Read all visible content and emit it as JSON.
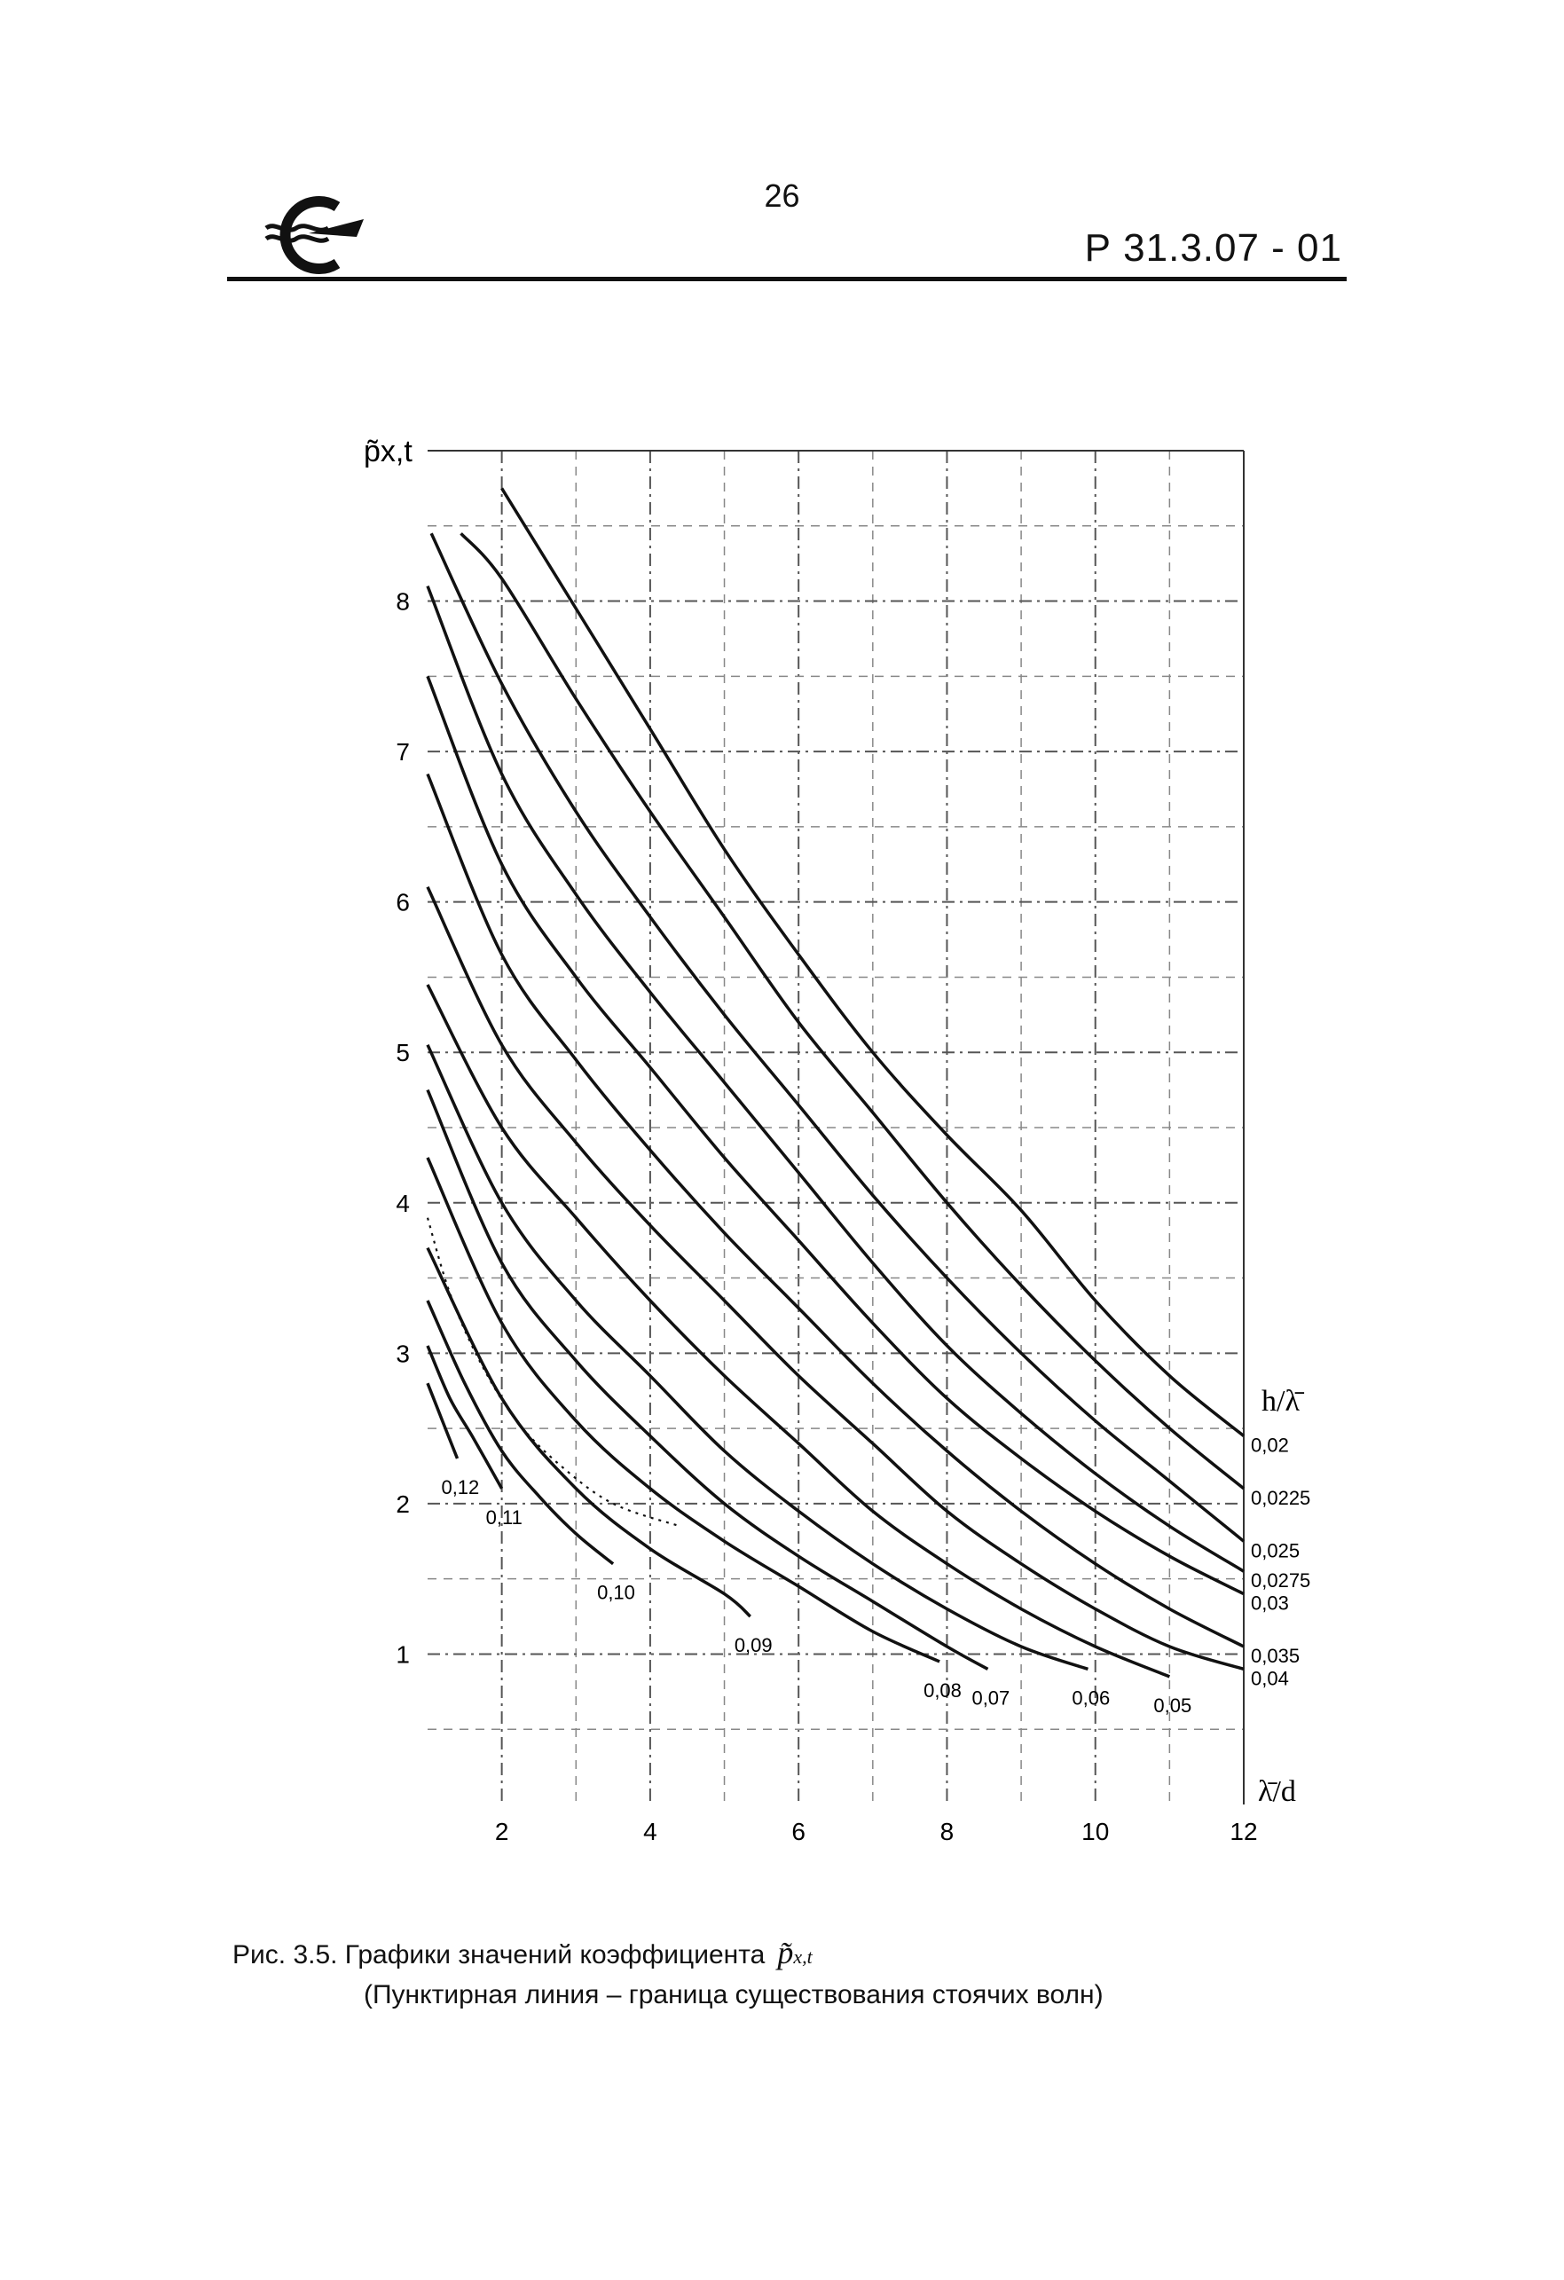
{
  "header": {
    "page_number": "26",
    "doc_code": "Р 31.3.07 - 01",
    "logo_icon": "ship-anchor-logo-icon"
  },
  "chart_data": {
    "type": "line",
    "title": "",
    "ylabel": "p̃x,t",
    "xlabel": "λ̄/d",
    "legend_title": "h/λ̄",
    "xlim": [
      1,
      12
    ],
    "ylim": [
      0,
      9
    ],
    "x_ticks": [
      2,
      4,
      6,
      8,
      10,
      12
    ],
    "y_ticks": [
      1,
      2,
      3,
      4,
      5,
      6,
      7,
      8
    ],
    "grid": true,
    "series": [
      {
        "name": "0,02",
        "x": [
          2.0,
          3.0,
          4.0,
          5.0,
          6.0,
          7.0,
          8.0,
          9.0,
          10.0,
          11.0,
          12.0
        ],
        "y": [
          8.75,
          7.95,
          7.15,
          6.35,
          5.65,
          5.0,
          4.45,
          3.95,
          3.35,
          2.85,
          2.45
        ]
      },
      {
        "name": "0,0225",
        "x": [
          1.45,
          2.0,
          3.0,
          4.0,
          5.0,
          6.0,
          7.0,
          8.0,
          9.0,
          10.0,
          11.0,
          12.0
        ],
        "y": [
          8.45,
          8.15,
          7.35,
          6.6,
          5.9,
          5.2,
          4.6,
          4.0,
          3.45,
          2.95,
          2.5,
          2.1
        ]
      },
      {
        "name": "0,025",
        "x": [
          1.05,
          2.0,
          3.0,
          4.0,
          5.0,
          6.0,
          7.0,
          8.0,
          9.0,
          10.0,
          11.0,
          12.0
        ],
        "y": [
          8.45,
          7.45,
          6.6,
          5.9,
          5.25,
          4.65,
          4.05,
          3.5,
          3.0,
          2.55,
          2.15,
          1.75
        ]
      },
      {
        "name": "0,0275",
        "x": [
          1.0,
          2.0,
          3.0,
          4.0,
          5.0,
          6.0,
          7.0,
          8.0,
          9.0,
          10.0,
          11.0,
          12.0
        ],
        "y": [
          8.1,
          6.85,
          6.05,
          5.4,
          4.8,
          4.2,
          3.6,
          3.05,
          2.6,
          2.2,
          1.85,
          1.55
        ]
      },
      {
        "name": "0,03",
        "x": [
          1.0,
          2.0,
          3.0,
          4.0,
          5.0,
          6.0,
          7.0,
          8.0,
          9.0,
          10.0,
          11.0,
          12.0
        ],
        "y": [
          7.5,
          6.25,
          5.5,
          4.9,
          4.3,
          3.75,
          3.2,
          2.7,
          2.3,
          1.95,
          1.65,
          1.4
        ]
      },
      {
        "name": "0,035",
        "x": [
          1.0,
          2.0,
          3.0,
          4.0,
          5.0,
          6.0,
          7.0,
          8.0,
          9.0,
          10.0,
          11.0,
          12.0
        ],
        "y": [
          6.85,
          5.65,
          4.95,
          4.35,
          3.8,
          3.3,
          2.8,
          2.35,
          1.95,
          1.6,
          1.3,
          1.05
        ]
      },
      {
        "name": "0,04",
        "x": [
          1.0,
          2.0,
          3.0,
          4.0,
          5.0,
          6.0,
          7.0,
          8.0,
          9.0,
          10.0,
          11.0,
          12.0
        ],
        "y": [
          6.1,
          5.05,
          4.4,
          3.85,
          3.35,
          2.85,
          2.4,
          1.95,
          1.6,
          1.3,
          1.05,
          0.9
        ]
      },
      {
        "name": "0,05",
        "x": [
          1.0,
          2.0,
          3.0,
          4.0,
          5.0,
          6.0,
          7.0,
          8.0,
          9.0,
          10.0,
          11.0
        ],
        "y": [
          5.45,
          4.5,
          3.9,
          3.35,
          2.85,
          2.4,
          1.95,
          1.6,
          1.3,
          1.05,
          0.85
        ]
      },
      {
        "name": "0,06",
        "x": [
          1.0,
          2.0,
          3.0,
          4.0,
          5.0,
          6.0,
          7.0,
          8.0,
          9.0,
          9.9
        ],
        "y": [
          5.05,
          4.0,
          3.35,
          2.85,
          2.35,
          1.95,
          1.6,
          1.3,
          1.05,
          0.9
        ]
      },
      {
        "name": "0,07",
        "x": [
          1.0,
          2.0,
          3.0,
          4.0,
          5.0,
          6.0,
          7.0,
          8.0,
          8.55
        ],
        "y": [
          4.75,
          3.6,
          2.95,
          2.45,
          2.0,
          1.65,
          1.35,
          1.05,
          0.9
        ]
      },
      {
        "name": "0,08",
        "x": [
          1.0,
          2.0,
          3.0,
          4.0,
          5.0,
          6.0,
          7.0,
          7.9
        ],
        "y": [
          4.3,
          3.2,
          2.55,
          2.1,
          1.75,
          1.45,
          1.15,
          0.95
        ]
      },
      {
        "name": "0,09",
        "x": [
          1.0,
          2.0,
          3.0,
          4.0,
          5.0,
          5.35
        ],
        "y": [
          3.7,
          2.7,
          2.1,
          1.7,
          1.4,
          1.25
        ]
      },
      {
        "name": "0,10",
        "x": [
          1.0,
          1.5,
          2.0,
          2.5,
          3.0,
          3.5
        ],
        "y": [
          3.35,
          2.8,
          2.35,
          2.05,
          1.8,
          1.6
        ]
      },
      {
        "name": "0,11",
        "x": [
          1.0,
          1.3,
          1.6,
          2.0
        ],
        "y": [
          3.05,
          2.7,
          2.45,
          2.1
        ]
      },
      {
        "name": "0,12",
        "x": [
          1.0,
          1.2,
          1.4
        ],
        "y": [
          2.8,
          2.55,
          2.3
        ]
      }
    ],
    "boundary": {
      "x": [
        1.0,
        1.3,
        1.7,
        2.2,
        2.8,
        3.5,
        4.4
      ],
      "y": [
        3.9,
        3.4,
        2.95,
        2.55,
        2.25,
        2.0,
        1.85
      ]
    },
    "line_color": "#111111"
  },
  "caption": {
    "text": "Рис. 3.5. Графики значений коэффициента",
    "symbol": "p̃",
    "symbol_sub": "x,t"
  },
  "note": "(Пунктирная линия – граница существования стоячих волн)"
}
